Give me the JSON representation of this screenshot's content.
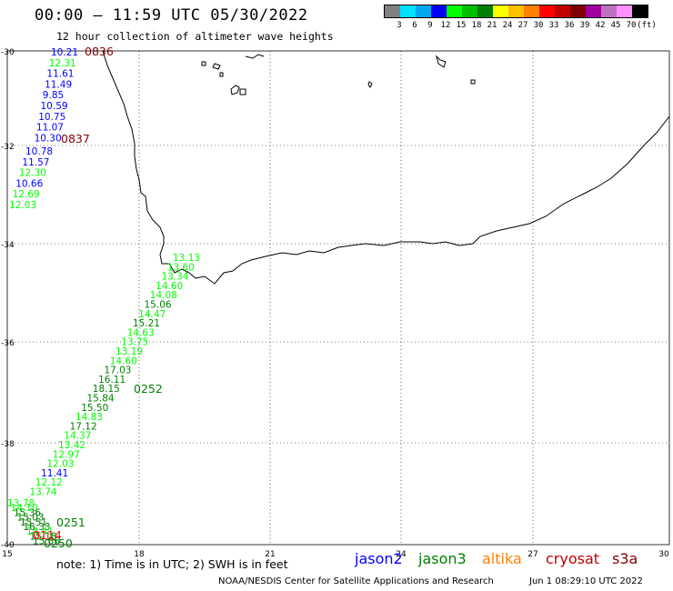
{
  "header": {
    "title": "00:00 – 11:59 UTC 05/30/2022",
    "subtitle": "12 hour collection of altimeter wave heights"
  },
  "scale": {
    "colors": [
      "#808080",
      "#00e0ff",
      "#00a8f0",
      "#0000ff",
      "#00ff00",
      "#00c000",
      "#008000",
      "#ffff00",
      "#ffc000",
      "#ff8000",
      "#ff0000",
      "#c00000",
      "#800000",
      "#a000a0",
      "#c070c0",
      "#ff90ff",
      "#000000"
    ],
    "labels": [
      "3",
      "6",
      "9",
      "12",
      "15",
      "18",
      "21",
      "24",
      "27",
      "30",
      "33",
      "36",
      "39",
      "42",
      "45",
      "70"
    ],
    "unit": "(ft)"
  },
  "axes": {
    "lon_labels": [
      "15",
      "18",
      "21",
      "24",
      "27",
      "30"
    ],
    "lat_labels": [
      "-30",
      "-32",
      "-34",
      "-36",
      "-38",
      "-40"
    ]
  },
  "tracks": [
    {
      "satellite": "jason2",
      "time_label": "0836",
      "points": [
        [
          "10.21",
          "#0000ff"
        ],
        [
          "12.31",
          "#00ff00"
        ],
        [
          "11.61",
          "#0000ff"
        ],
        [
          "11.49",
          "#0000ff"
        ],
        [
          "9.85",
          "#0000ff"
        ],
        [
          "10.59",
          "#0000ff"
        ],
        [
          "10.75",
          "#0000ff"
        ],
        [
          "11.07",
          "#0000ff"
        ],
        [
          "10.30",
          "#0000ff"
        ]
      ]
    },
    {
      "satellite": "jason2",
      "time_label": "0837",
      "points": [
        [
          "10.78",
          "#0000ff"
        ],
        [
          "11.57",
          "#0000ff"
        ],
        [
          "12.30",
          "#00ff00"
        ],
        [
          "10.66",
          "#0000ff"
        ],
        [
          "12.69",
          "#00ff00"
        ],
        [
          "12.03",
          "#00ff00"
        ]
      ]
    },
    {
      "satellite": "jason3",
      "time_label": "0252",
      "points": [
        [
          "13.13",
          "#00ff00"
        ],
        [
          "13.60",
          "#00ff00"
        ],
        [
          "13.34",
          "#00ff00"
        ],
        [
          "14.60",
          "#00ff00"
        ],
        [
          "14.08",
          "#00ff00"
        ],
        [
          "15.06",
          "#008000"
        ],
        [
          "14.47",
          "#00ff00"
        ],
        [
          "15.21",
          "#008000"
        ],
        [
          "14.63",
          "#00ff00"
        ],
        [
          "13.75",
          "#00ff00"
        ],
        [
          "13.19",
          "#00ff00"
        ],
        [
          "14.60",
          "#00ff00"
        ],
        [
          "17.03",
          "#008000"
        ],
        [
          "16.11",
          "#008000"
        ],
        [
          "18.15",
          "#008000"
        ],
        [
          "15.84",
          "#008000"
        ],
        [
          "15.50",
          "#008000"
        ],
        [
          "14.83",
          "#00ff00"
        ],
        [
          "17.12",
          "#008000"
        ],
        [
          "14.37",
          "#00ff00"
        ],
        [
          "13.42",
          "#00ff00"
        ],
        [
          "12.97",
          "#00ff00"
        ],
        [
          "12.03",
          "#00ff00"
        ],
        [
          "11.41",
          "#0000ff"
        ],
        [
          "12.12",
          "#00ff00"
        ],
        [
          "13.74",
          "#00ff00"
        ]
      ]
    },
    {
      "satellite": "jason3",
      "time_label": "0251",
      "points": [
        [
          "13.78",
          "#00ff00"
        ],
        [
          "14.10",
          "#00ff00"
        ],
        [
          "15.36",
          "#008000"
        ],
        [
          "15.03",
          "#008000"
        ],
        [
          "15.51",
          "#008000"
        ],
        [
          "16.33",
          "#008000"
        ],
        [
          "14.41",
          "#00ff00"
        ],
        [
          "15.18",
          "#008000"
        ],
        [
          "15.86",
          "#008000"
        ]
      ]
    },
    {
      "satellite": "cryosat",
      "time_label": "0114",
      "points": []
    },
    {
      "satellite": "jason3",
      "time_label": "0250",
      "points": []
    }
  ],
  "note": "note: 1) Time is in UTC; 2) SWH is in feet",
  "legend": [
    {
      "name": "jason2",
      "color": "#0000ff"
    },
    {
      "name": "jason3",
      "color": "#008000"
    },
    {
      "name": "altika",
      "color": "#ff8000"
    },
    {
      "name": "cryosat",
      "color": "#c00000"
    },
    {
      "name": "s3a",
      "color": "#800000"
    }
  ],
  "footer": {
    "credit": "NOAA/NESDIS Center for Satellite Applications and Research",
    "generated": "Jun  1 08:29:10 UTC 2022"
  }
}
